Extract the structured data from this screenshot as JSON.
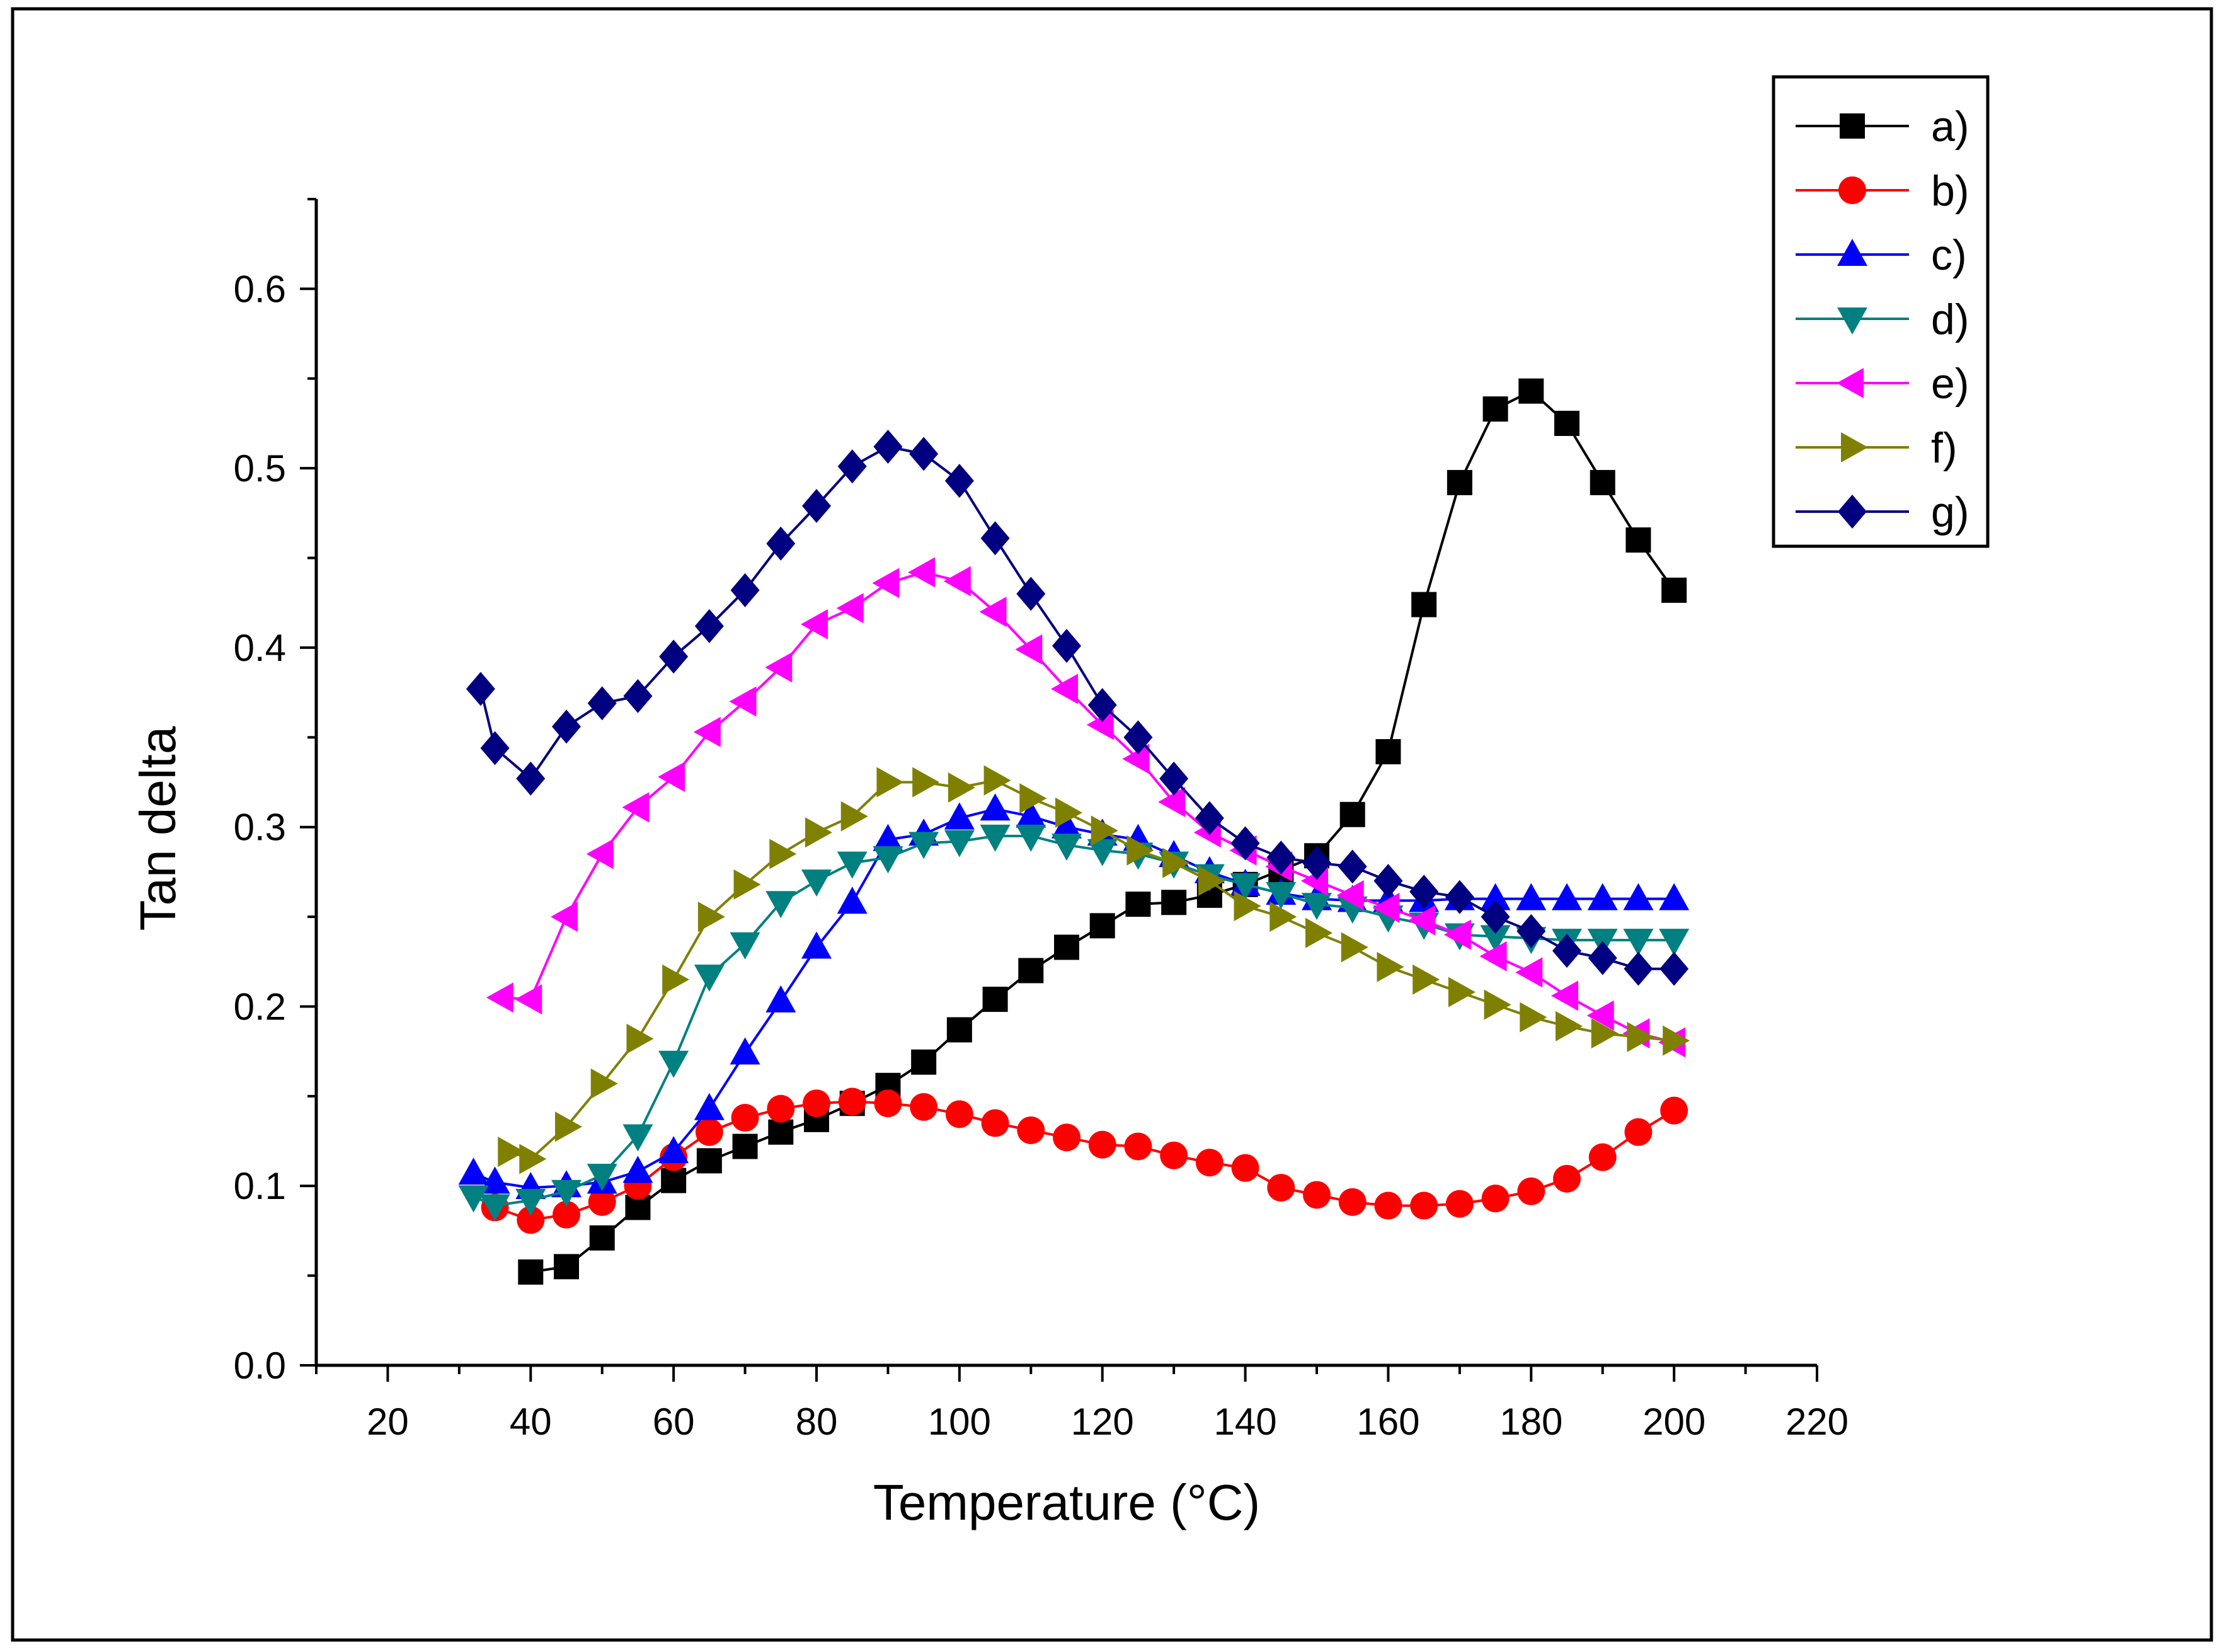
{
  "chart_data": {
    "type": "line",
    "xlabel": "Temperature (°C)",
    "ylabel": "Tan delta",
    "xlim": [
      10,
      220
    ],
    "ylim": [
      0,
      0.65
    ],
    "xticks": [
      20,
      40,
      60,
      80,
      100,
      120,
      140,
      160,
      180,
      200,
      220
    ],
    "xtick_labels": [
      "20",
      "40",
      "60",
      "80",
      "100",
      "120",
      "140",
      "160",
      "180",
      "200",
      "220"
    ],
    "yticks": [
      0.0,
      0.1,
      0.2,
      0.3,
      0.4,
      0.5,
      0.6
    ],
    "ytick_labels": [
      "0.0",
      "0.1",
      "0.2",
      "0.3",
      "0.4",
      "0.5",
      "0.6"
    ],
    "grid": false,
    "legend_position": "top-right",
    "series": [
      {
        "name": "a)",
        "color": "#000000",
        "marker": "square",
        "x": [
          40,
          45,
          50,
          55,
          60,
          65,
          70,
          75,
          80,
          85,
          90,
          95,
          100,
          105,
          110,
          115,
          120,
          125,
          130,
          135,
          140,
          145,
          150,
          155,
          160,
          165,
          170,
          175,
          180,
          185,
          190,
          195,
          200
        ],
        "y": [
          0.052,
          0.055,
          0.071,
          0.088,
          0.103,
          0.114,
          0.122,
          0.13,
          0.137,
          0.146,
          0.156,
          0.169,
          0.187,
          0.204,
          0.22,
          0.233,
          0.245,
          0.257,
          0.258,
          0.262,
          0.268,
          0.276,
          0.284,
          0.307,
          0.342,
          0.424,
          0.492,
          0.533,
          0.543,
          0.525,
          0.492,
          0.46,
          0.432
        ]
      },
      {
        "name": "b)",
        "color": "#ff0000",
        "marker": "circle",
        "x": [
          35,
          40,
          45,
          50,
          55,
          60,
          65,
          70,
          75,
          80,
          85,
          90,
          95,
          100,
          105,
          110,
          115,
          120,
          125,
          130,
          135,
          140,
          145,
          150,
          155,
          160,
          165,
          170,
          175,
          180,
          185,
          190,
          195,
          200
        ],
        "y": [
          0.088,
          0.081,
          0.084,
          0.091,
          0.1,
          0.116,
          0.13,
          0.138,
          0.143,
          0.146,
          0.147,
          0.146,
          0.144,
          0.14,
          0.135,
          0.131,
          0.127,
          0.123,
          0.122,
          0.117,
          0.113,
          0.11,
          0.099,
          0.095,
          0.091,
          0.089,
          0.089,
          0.09,
          0.093,
          0.097,
          0.104,
          0.116,
          0.13,
          0.142
        ]
      },
      {
        "name": "c)",
        "color": "#0000ff",
        "marker": "triangle-up",
        "x": [
          32,
          35,
          40,
          45,
          50,
          55,
          60,
          65,
          70,
          75,
          80,
          85,
          90,
          95,
          100,
          105,
          110,
          115,
          120,
          125,
          130,
          135,
          140,
          145,
          150,
          155,
          160,
          165,
          170,
          175,
          180,
          185,
          190,
          195,
          200
        ],
        "y": [
          0.107,
          0.102,
          0.099,
          0.1,
          0.102,
          0.108,
          0.119,
          0.143,
          0.174,
          0.203,
          0.233,
          0.258,
          0.293,
          0.296,
          0.305,
          0.31,
          0.306,
          0.3,
          0.296,
          0.293,
          0.284,
          0.275,
          0.268,
          0.263,
          0.26,
          0.259,
          0.259,
          0.259,
          0.26,
          0.26,
          0.26,
          0.26,
          0.26,
          0.26,
          0.26
        ]
      },
      {
        "name": "d)",
        "color": "#008080",
        "marker": "triangle-down",
        "x": [
          32,
          35,
          40,
          45,
          50,
          55,
          60,
          65,
          70,
          75,
          80,
          85,
          90,
          95,
          100,
          105,
          110,
          115,
          120,
          125,
          130,
          135,
          140,
          145,
          150,
          155,
          160,
          165,
          170,
          175,
          180,
          185,
          190,
          195,
          200
        ],
        "y": [
          0.094,
          0.089,
          0.092,
          0.097,
          0.106,
          0.128,
          0.169,
          0.217,
          0.235,
          0.258,
          0.27,
          0.28,
          0.283,
          0.291,
          0.292,
          0.295,
          0.295,
          0.29,
          0.287,
          0.285,
          0.28,
          0.273,
          0.268,
          0.263,
          0.257,
          0.255,
          0.25,
          0.246,
          0.24,
          0.239,
          0.238,
          0.237,
          0.237,
          0.237,
          0.237
        ]
      },
      {
        "name": "e)",
        "color": "#ff00ff",
        "marker": "triangle-left",
        "x": [
          36,
          40,
          45,
          50,
          55,
          60,
          65,
          70,
          75,
          80,
          85,
          90,
          95,
          100,
          105,
          110,
          115,
          120,
          125,
          130,
          135,
          140,
          145,
          150,
          155,
          160,
          165,
          170,
          175,
          180,
          185,
          190,
          195,
          200
        ],
        "y": [
          0.205,
          0.204,
          0.25,
          0.285,
          0.311,
          0.328,
          0.353,
          0.37,
          0.389,
          0.413,
          0.422,
          0.436,
          0.442,
          0.437,
          0.42,
          0.399,
          0.377,
          0.357,
          0.338,
          0.314,
          0.297,
          0.287,
          0.278,
          0.27,
          0.262,
          0.255,
          0.248,
          0.24,
          0.228,
          0.219,
          0.206,
          0.195,
          0.185,
          0.18
        ]
      },
      {
        "name": "f)",
        "color": "#808000",
        "marker": "triangle-right",
        "x": [
          37,
          40,
          45,
          50,
          55,
          60,
          65,
          70,
          75,
          80,
          85,
          90,
          95,
          100,
          105,
          110,
          115,
          120,
          125,
          130,
          135,
          140,
          145,
          150,
          155,
          160,
          165,
          170,
          175,
          180,
          185,
          190,
          195,
          200
        ],
        "y": [
          0.119,
          0.115,
          0.133,
          0.157,
          0.182,
          0.215,
          0.25,
          0.268,
          0.285,
          0.297,
          0.306,
          0.325,
          0.325,
          0.322,
          0.326,
          0.316,
          0.308,
          0.298,
          0.287,
          0.28,
          0.27,
          0.256,
          0.25,
          0.241,
          0.233,
          0.222,
          0.215,
          0.208,
          0.201,
          0.194,
          0.189,
          0.185,
          0.183,
          0.181
        ]
      },
      {
        "name": "g)",
        "color": "#000080",
        "marker": "diamond",
        "x": [
          33,
          35,
          40,
          45,
          50,
          55,
          60,
          65,
          70,
          75,
          80,
          85,
          90,
          95,
          100,
          105,
          110,
          115,
          120,
          125,
          130,
          135,
          140,
          145,
          150,
          155,
          160,
          165,
          170,
          175,
          180,
          185,
          190,
          195,
          200
        ],
        "y": [
          0.377,
          0.344,
          0.327,
          0.356,
          0.369,
          0.373,
          0.395,
          0.412,
          0.432,
          0.458,
          0.479,
          0.501,
          0.512,
          0.508,
          0.493,
          0.461,
          0.43,
          0.401,
          0.368,
          0.35,
          0.327,
          0.305,
          0.291,
          0.283,
          0.28,
          0.278,
          0.27,
          0.264,
          0.261,
          0.25,
          0.242,
          0.231,
          0.227,
          0.221,
          0.221
        ]
      }
    ]
  }
}
